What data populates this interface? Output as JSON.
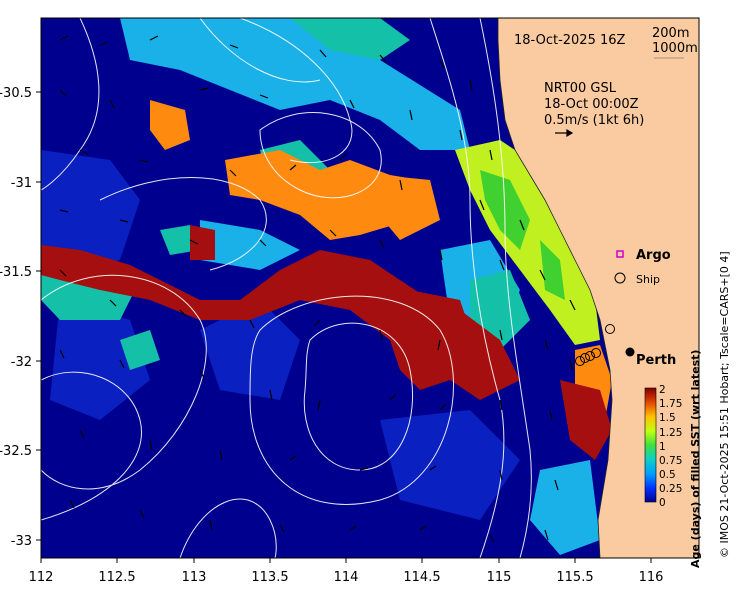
{
  "map": {
    "date_label": "18-Oct-2025 16Z",
    "depth_labels": [
      "200m",
      "1000m"
    ],
    "current_source": "NRT00 GSL",
    "current_time": "18-Oct 00:00Z",
    "vector_scale": "0.5m/s (1kt 6h)",
    "legend": {
      "argo": "Argo",
      "ship": "Ship"
    },
    "place": "Perth",
    "x_ticks": [
      "112",
      "112.5",
      "113",
      "113.5",
      "114",
      "114.5",
      "115",
      "115.5",
      "116"
    ],
    "y_ticks": [
      "-30.5",
      "-31",
      "-31.5",
      "-32",
      "-32.5",
      "-33"
    ],
    "colorbar": {
      "title": "Age (days) of filled SST (wrt latest)",
      "ticks": [
        "0",
        "0.25",
        "0.5",
        "0.75",
        "1",
        "1.25",
        "1.5",
        "1.75",
        "2"
      ],
      "colors": [
        "#00008f",
        "#0040ff",
        "#00c0ff",
        "#20d0a0",
        "#c0ff20",
        "#ffd000",
        "#ff8000",
        "#d02000",
        "#800000"
      ]
    },
    "credit": "© IMOS 21-Oct-2025 15:51 Hobart; Tscale=CARS+[0 4]",
    "colors": {
      "land": "#facba0",
      "ocean_deep": "#00008f",
      "ocean_mid": "#0a1fb8",
      "cyan": "#1ab0e8",
      "teal": "#14c0a8",
      "lime": "#c0f020",
      "orange": "#ff8a10",
      "red": "#a50f0f"
    }
  }
}
